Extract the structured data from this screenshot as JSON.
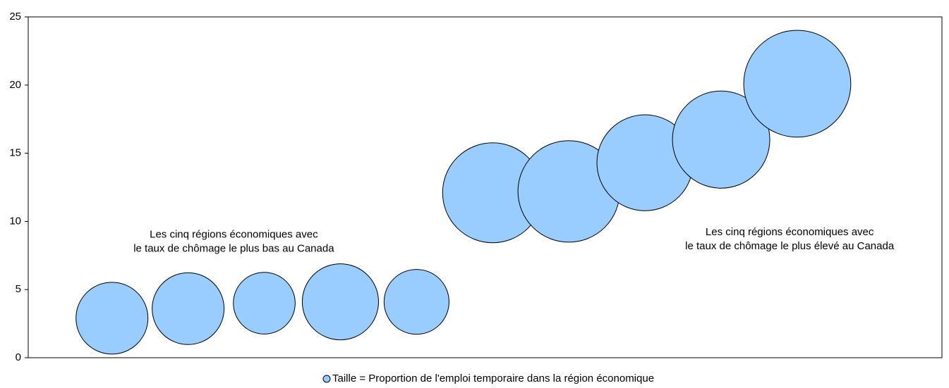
{
  "chart_data": {
    "type": "bubble",
    "x": [
      1,
      2,
      3,
      4,
      5,
      6,
      7,
      8,
      9,
      10
    ],
    "series": [
      {
        "name": "Taille = Proportion de l'emploi temporaire dans la région économique",
        "color": "#99ccff",
        "values": [
          2.9,
          3.6,
          4.0,
          4.1,
          4.1,
          12.1,
          12.2,
          14.3,
          16.0,
          20.1
        ],
        "sizes": [
          6.5,
          6.5,
          4.8,
          7.3,
          5.3,
          12.6,
          13.0,
          11.6,
          11.9,
          14.4
        ]
      }
    ],
    "xlim": [
      -0.1,
      11.9
    ],
    "ylim": [
      0,
      25
    ],
    "yticks": [
      0,
      5,
      10,
      15,
      20,
      25
    ],
    "annotations": [
      {
        "lines": [
          "Les cinq régions économiques avec",
          "le taux de chômage le plus bas au Canada"
        ],
        "x": 2.6,
        "y": 9
      },
      {
        "lines": [
          "Les cinq régions économiques avec",
          "le taux de chômage le plus élevé au Canada"
        ],
        "x": 9.9,
        "y": 9.2
      }
    ],
    "legend": "bottom"
  }
}
